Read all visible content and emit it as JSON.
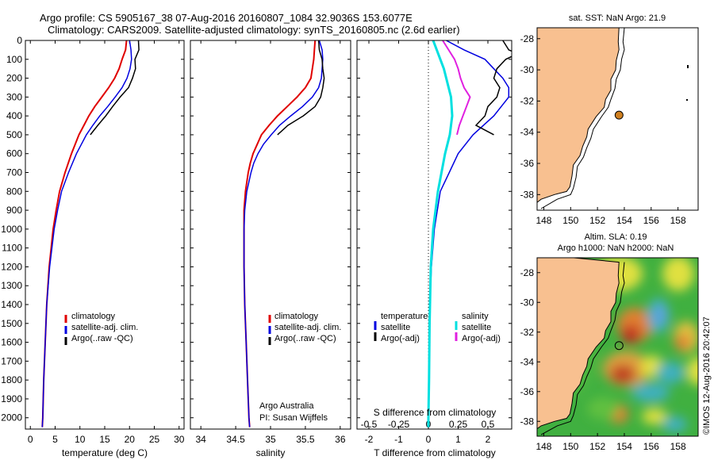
{
  "header": {
    "line1": "Argo profile: CS 5905167_38 07-Aug-2016 20160807_1084 32.9036S 153.6077E",
    "line2": "Climatology: CARS2009. Satellite-adjusted climatology: synTS_20160805.nc (2.6d earlier)"
  },
  "map1_title": "sat. SST: NaN Argo: 21.9",
  "map2_title1": "Altim. SLA: 0.19",
  "map2_title2": "Argo h1000: NaN h2000: NaN",
  "side_stamp": "©IMOS 12-Aug-2016 20:42:07",
  "credit": {
    "line1": "Argo Australia",
    "line2": "PI: Susan Wijffels"
  },
  "colors": {
    "climatology": "#e00000",
    "satellite": "#0000e0",
    "argo": "#000000",
    "salinity_satellite": "#00e0e0",
    "salinity_argo": "#e020e0",
    "land": "#f8c090",
    "argo_marker": "#d08020"
  },
  "chart_data": [
    {
      "type": "line",
      "xlabel": "temperature (deg C)",
      "ylabel": "",
      "xlim": [
        -1,
        31
      ],
      "ylim": [
        2060,
        0
      ],
      "xticks": [
        0,
        5,
        10,
        15,
        20,
        25,
        30
      ],
      "yticks": [
        0,
        100,
        200,
        300,
        400,
        500,
        600,
        700,
        800,
        900,
        1000,
        1100,
        1200,
        1300,
        1400,
        1500,
        1600,
        1700,
        1800,
        1900,
        2000
      ],
      "legend": [
        "climatology",
        "satellite-adj. clim.",
        "Argo(..raw -QC)"
      ],
      "legend_position": "bottom-left",
      "series": [
        {
          "name": "climatology",
          "color": "#e00000",
          "depth": [
            0,
            50,
            100,
            150,
            200,
            250,
            300,
            350,
            400,
            450,
            500,
            600,
            700,
            800,
            900,
            1000,
            1200,
            1400,
            1600,
            1800,
            2000,
            2050
          ],
          "values": [
            19.4,
            19.2,
            18.5,
            17.9,
            17.0,
            15.8,
            14.4,
            13.0,
            11.8,
            10.8,
            9.8,
            8.3,
            7.0,
            5.9,
            5.2,
            4.6,
            3.8,
            3.3,
            3.0,
            2.7,
            2.5,
            2.4
          ]
        },
        {
          "name": "satellite-adj. clim.",
          "color": "#0000e0",
          "depth": [
            0,
            50,
            100,
            150,
            200,
            250,
            300,
            350,
            400,
            450,
            500,
            600,
            700,
            800,
            900,
            1000,
            1200,
            1400,
            1600,
            1800,
            2000,
            2050
          ],
          "values": [
            20.0,
            20.3,
            20.4,
            20.1,
            19.5,
            18.5,
            17.1,
            15.6,
            14.0,
            12.6,
            11.3,
            9.3,
            7.7,
            6.3,
            5.5,
            4.8,
            3.9,
            3.3,
            3.0,
            2.7,
            2.5,
            2.4
          ]
        },
        {
          "name": "Argo(..raw -QC)",
          "color": "#000000",
          "depth": [
            0,
            50,
            75,
            100,
            150,
            200,
            250,
            300,
            350,
            400,
            450,
            500
          ],
          "values": [
            21.8,
            21.9,
            21.5,
            21.1,
            21.2,
            20.6,
            19.8,
            18.1,
            16.6,
            15.2,
            13.6,
            12.1
          ]
        }
      ]
    },
    {
      "type": "line",
      "xlabel": "salinity",
      "ylabel": "",
      "xlim": [
        33.85,
        36.15
      ],
      "ylim": [
        2060,
        0
      ],
      "xticks": [
        34,
        34.5,
        35,
        35.5,
        36
      ],
      "legend": [
        "climatology",
        "satellite-adj. clim.",
        "Argo(..raw -QC)"
      ],
      "legend_position": "bottom-right",
      "series": [
        {
          "name": "climatology",
          "color": "#e00000",
          "depth": [
            0,
            50,
            100,
            150,
            200,
            250,
            300,
            350,
            400,
            450,
            500,
            550,
            600,
            650,
            700,
            800,
            900,
            1000,
            1200,
            1400,
            1600,
            1800,
            2000,
            2050
          ],
          "values": [
            35.64,
            35.63,
            35.62,
            35.6,
            35.58,
            35.5,
            35.38,
            35.24,
            35.1,
            34.98,
            34.87,
            34.81,
            34.75,
            34.71,
            34.68,
            34.64,
            34.62,
            34.62,
            34.62,
            34.63,
            34.65,
            34.67,
            34.69,
            34.7
          ]
        },
        {
          "name": "satellite-adj. clim.",
          "color": "#0000e0",
          "depth": [
            0,
            50,
            100,
            150,
            200,
            250,
            300,
            350,
            400,
            450,
            500,
            550,
            600,
            650,
            700,
            800,
            900,
            1000,
            1200,
            1400,
            1600,
            1800,
            2000,
            2050
          ],
          "values": [
            35.7,
            35.74,
            35.75,
            35.74,
            35.73,
            35.69,
            35.6,
            35.46,
            35.29,
            35.13,
            35.01,
            34.9,
            34.82,
            34.76,
            34.72,
            34.66,
            34.63,
            34.62,
            34.62,
            34.63,
            34.65,
            34.67,
            34.69,
            34.7
          ]
        },
        {
          "name": "Argo(..raw -QC)",
          "color": "#000000",
          "depth": [
            0,
            50,
            100,
            150,
            200,
            250,
            300,
            350,
            400,
            450,
            500
          ],
          "values": [
            35.69,
            35.7,
            35.74,
            35.75,
            35.77,
            35.75,
            35.72,
            35.64,
            35.47,
            35.25,
            35.1
          ]
        }
      ]
    },
    {
      "type": "line",
      "xlabel": "T difference from climatology",
      "x2label": "S difference from climatology",
      "xlim": [
        -2.4,
        2.8
      ],
      "ylim": [
        2060,
        0
      ],
      "xticks": [
        -2,
        -1,
        0,
        1,
        2
      ],
      "x2ticks": [
        -0.5,
        -0.25,
        0,
        0.25,
        0.5
      ],
      "legend_temperature": [
        "temperature",
        "satellite",
        "Argo(-adj)"
      ],
      "legend_salinity": [
        "salinity",
        "satellite",
        "Argo(-adj)"
      ],
      "series": [
        {
          "name": "temperature satellite",
          "color": "#0000e0",
          "depth": [
            0,
            50,
            100,
            150,
            200,
            250,
            300,
            400,
            500,
            600,
            700,
            800,
            1000,
            1200,
            1400,
            1600,
            1800,
            2000,
            2050
          ],
          "values": [
            0.6,
            1.2,
            1.9,
            2.2,
            2.5,
            2.7,
            2.7,
            2.2,
            1.5,
            1.0,
            0.7,
            0.4,
            0.2,
            0.1,
            0.05,
            0.03,
            0.02,
            0.0,
            0.0
          ]
        },
        {
          "name": "temperature Argo(-adj)",
          "color": "#000000",
          "depth": [
            0,
            50,
            70,
            100,
            150,
            200,
            250,
            300,
            350,
            400,
            450,
            500
          ],
          "values": [
            2.5,
            2.7,
            3.0,
            2.6,
            2.3,
            2.2,
            2.4,
            2.3,
            2.0,
            1.9,
            1.6,
            2.2
          ]
        },
        {
          "name": "salinity satellite",
          "color": "#00e0e0",
          "depth": [
            0,
            50,
            100,
            150,
            200,
            250,
            300,
            400,
            500,
            600,
            800,
            1000,
            1200,
            1500,
            1800,
            2000,
            2050
          ],
          "values": [
            0.04,
            0.07,
            0.1,
            0.13,
            0.15,
            0.17,
            0.19,
            0.2,
            0.18,
            0.14,
            0.08,
            0.04,
            0.02,
            0.01,
            0.005,
            0.0,
            0.0
          ]
        },
        {
          "name": "salinity Argo(-adj)",
          "color": "#e020e0",
          "depth": [
            0,
            50,
            100,
            150,
            200,
            250,
            300,
            350,
            400,
            450,
            500
          ],
          "values": [
            0.12,
            0.17,
            0.22,
            0.25,
            0.27,
            0.3,
            0.35,
            0.32,
            0.29,
            0.26,
            0.24
          ]
        }
      ]
    },
    {
      "type": "map",
      "xlim": [
        147.5,
        159.5
      ],
      "ylim": [
        -39,
        -27.3
      ],
      "xticks": [
        148,
        150,
        152,
        154,
        156,
        158
      ],
      "yticks": [
        -28,
        -30,
        -32,
        -34,
        -36,
        -38
      ],
      "marker": {
        "lon": 153.6077,
        "lat": -32.9036
      }
    },
    {
      "type": "heatmap",
      "xlim": [
        147.5,
        159.5
      ],
      "ylim": [
        -39,
        -27
      ],
      "xticks": [
        148,
        150,
        152,
        154,
        156,
        158
      ],
      "yticks": [
        -28,
        -30,
        -32,
        -34,
        -36,
        -38
      ],
      "marker": {
        "lon": 153.6077,
        "lat": -32.9036
      }
    }
  ]
}
